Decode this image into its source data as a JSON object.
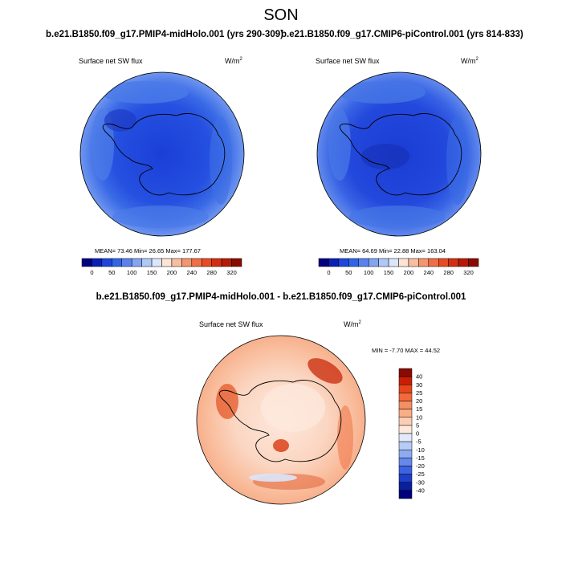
{
  "season": "SON",
  "panels": {
    "left": {
      "title": "b.e21.B1850.f09_g17.PMIP4-midHolo.001 (yrs 290-309)",
      "variable": "Surface net SW flux",
      "units_base": "W/m",
      "units_sup": "2",
      "stats": "MEAN=  73.46  Min=  26.65  Max= 177.67"
    },
    "right": {
      "title": "b.e21.B1850.f09_g17.CMIP6-piControl.001 (yrs 814-833)",
      "variable": "Surface net SW flux",
      "units_base": "W/m",
      "units_sup": "2",
      "stats": "MEAN=  64.69  Min=  22.88  Max= 163.04"
    },
    "diff": {
      "title": "b.e21.B1850.f09_g17.PMIP4-midHolo.001 - b.e21.B1850.f09_g17.CMIP6-piControl.001",
      "variable": "Surface net SW flux",
      "units_base": "W/m",
      "units_sup": "2",
      "stats": "MIN =  -7.70 MAX =  44.52"
    }
  },
  "colorbar_abs": {
    "labels": [
      "0",
      "50",
      "100",
      "150",
      "200",
      "240",
      "280",
      "320"
    ],
    "colors": [
      "#000080",
      "#0a1fb4",
      "#1e46dc",
      "#3264e6",
      "#5a82ee",
      "#82a5f2",
      "#afc8f7",
      "#dce6fb",
      "#fde4d4",
      "#f9bea0",
      "#f59670",
      "#f06e46",
      "#e84c22",
      "#d42e0e",
      "#b41a06",
      "#8a0a00"
    ]
  },
  "colorbar_diff": {
    "labels": [
      "40",
      "30",
      "25",
      "20",
      "15",
      "10",
      "5",
      "0",
      "-5",
      "-10",
      "-15",
      "-20",
      "-25",
      "-30",
      "-40"
    ],
    "colors": [
      "#8a0a00",
      "#c81e06",
      "#e8461a",
      "#f26a3c",
      "#f78e62",
      "#f9ae88",
      "#fbcdb2",
      "#fde8dc",
      "#e0eafb",
      "#b6cbf6",
      "#8eaaf0",
      "#6688ea",
      "#3d63e2",
      "#1e3fc8",
      "#0a1f9c",
      "#000080"
    ]
  }
}
